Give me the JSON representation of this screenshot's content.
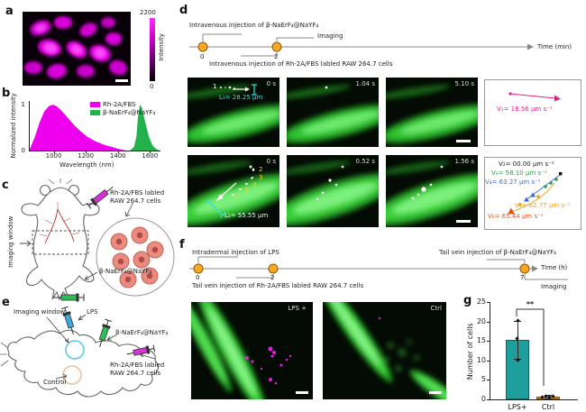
{
  "figure": {
    "panels": {
      "a": {
        "letter": "a",
        "colorbar": {
          "max": "2200",
          "min": "0",
          "label": "Intensity"
        }
      },
      "b": {
        "letter": "b"
      },
      "c": {
        "letter": "c",
        "imaging_window": "Imaging window",
        "cells_label_line1": "Rh-2A/FBS labled",
        "cells_label_line2": "RAW 264.7 cells",
        "particles_label": "β-NaErF₄@NaYF₄"
      },
      "d": {
        "letter": "d",
        "timeline": {
          "top_label": "Intravenous injection of β-NaErF₄@NaYF₄",
          "imaging": "Imaging",
          "bottom_label": "Intravenous injection of Rh-2A/FBS labled RAW 264.7 cells",
          "tick0": "0",
          "tick1": "2",
          "axis": "Time (min)"
        },
        "row1": {
          "times": [
            "0 s",
            "1.04 s",
            "5.10 s"
          ],
          "point": "1",
          "length": "L₁= 28.25 μm",
          "velocity": "V₁= 18.56 μm s⁻¹"
        },
        "row2": {
          "times": [
            "0 s",
            "0.52 s",
            "1.56 s"
          ],
          "points": [
            "2",
            "3",
            "4",
            "5",
            "6"
          ],
          "length": "L₂= 55.55 μm",
          "velocities": [
            {
              "text": "V₂= 00.00 μm s⁻¹",
              "color": "#1a1a1a"
            },
            {
              "text": "V₃= 58.10 μm s⁻¹",
              "color": "#2E9E4F"
            },
            {
              "text": "V₄= 63.27 μm s⁻¹",
              "color": "#3F6BD6"
            },
            {
              "text": "V₅= 62.77 μm s⁻¹",
              "color": "#E8A01E"
            },
            {
              "text": "V₆= 65.44 μm s⁻¹",
              "color": "#E0541A"
            }
          ]
        }
      },
      "e": {
        "letter": "e",
        "imaging_window": "Imaging window",
        "lps": "LPS",
        "particles_label": "β-NaErF₄@NaYF₄",
        "cells_label_line1": "Rh-2A/FBS labled",
        "cells_label_line2": "RAW 264.7 cells",
        "control": "Control"
      },
      "f": {
        "letter": "f",
        "timeline": {
          "top_left": "Intradermal injection of LPS",
          "top_right": "Tail vein injection of β-NaErF₄@NaYF₄",
          "bottom_left": "Tail vein injection of Rh-2A/FBS labled RAW 264.7 cells",
          "imaging": "Imaging",
          "tick0": "0",
          "tick1": "2",
          "tick2": "7",
          "axis": "Time (h)"
        },
        "images": [
          {
            "label": "LPS +"
          },
          {
            "label": "Ctrl"
          }
        ]
      },
      "g": {
        "letter": "g"
      }
    },
    "colors": {
      "magenta": "#EE00EE",
      "nir_green": "#22B14C",
      "teal_bar": "#1F9E9E",
      "orange_bar": "#E2801A",
      "timeline_dot": "#F9A825",
      "velocity1": "#E0218A"
    }
  },
  "chart_data": [
    {
      "id": "emission-spectra",
      "type": "area",
      "xlabel": "Wavelength (nm)",
      "ylabel": "Normalized intensity",
      "xlim": [
        845,
        1660
      ],
      "ylim": [
        0,
        1.08
      ],
      "xticks": [
        1000,
        1200,
        1400,
        1600
      ],
      "yticks": [
        0,
        1
      ],
      "legend_position": "top-center",
      "series": [
        {
          "name": "Rh-2A/FBS",
          "color": "#EE00EE",
          "x": [
            845,
            875,
            905,
            935,
            965,
            990,
            1015,
            1045,
            1085,
            1125,
            1165,
            1205,
            1255,
            1305,
            1355,
            1405,
            1445
          ],
          "y": [
            0.03,
            0.28,
            0.6,
            0.85,
            0.97,
            1.0,
            0.96,
            0.86,
            0.7,
            0.54,
            0.41,
            0.3,
            0.2,
            0.13,
            0.08,
            0.03,
            0.0
          ]
        },
        {
          "name": "β-NaErF₄@NaYF₄",
          "color": "#22B14C",
          "x": [
            1470,
            1495,
            1510,
            1520,
            1532,
            1545,
            1558,
            1572,
            1590,
            1612,
            1635,
            1655
          ],
          "y": [
            0.0,
            0.08,
            0.3,
            0.75,
            1.0,
            0.93,
            0.72,
            0.52,
            0.28,
            0.1,
            0.03,
            0.0
          ]
        }
      ]
    },
    {
      "id": "cell-count",
      "type": "bar",
      "categories": [
        "LPS+",
        "Ctrl"
      ],
      "values": [
        15.3,
        0.6
      ],
      "errors": [
        {
          "low": 4.8,
          "high": 4.9
        },
        {
          "low": 0.35,
          "high": 0.5
        }
      ],
      "points": [
        [
          {
            "dx": 0,
            "v": 10.0
          },
          {
            "dx": -1,
            "v": 15.7
          },
          {
            "dx": 0,
            "v": 20.2
          }
        ],
        [
          {
            "dx": -7,
            "v": 0.5
          },
          {
            "dx": -3,
            "v": 0.9
          },
          {
            "dx": 1,
            "v": 0.6
          },
          {
            "dx": 5,
            "v": 0.9
          }
        ]
      ],
      "bar_colors": [
        "#1F9E9E",
        "#E2801A"
      ],
      "ylabel": "Number of cells",
      "ylim": [
        0,
        25
      ],
      "yticks": [
        0,
        5,
        10,
        15,
        20,
        25
      ],
      "significance": "**"
    }
  ]
}
